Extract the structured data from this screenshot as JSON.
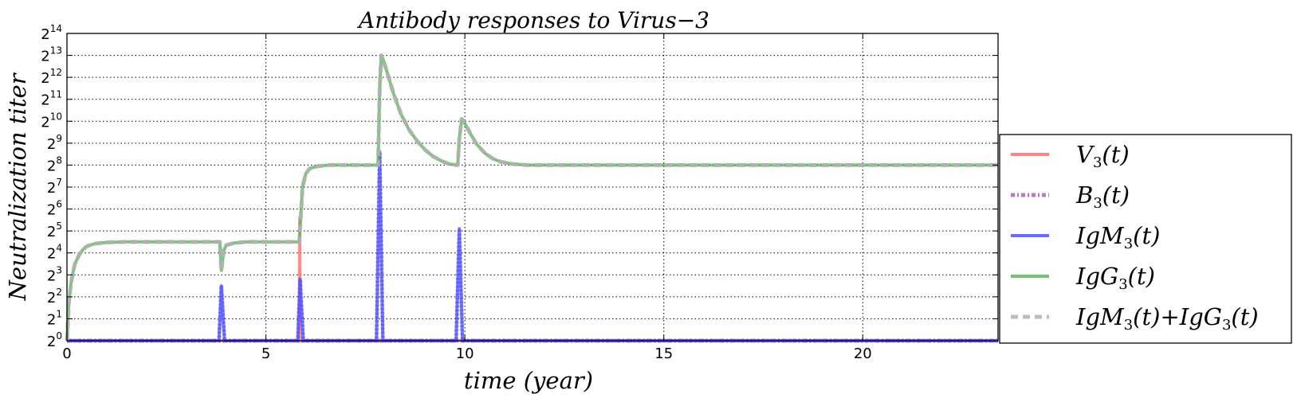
{
  "chart_data": {
    "type": "line",
    "title": "Antibody responses to Virus−3",
    "xlabel": "time (year)",
    "ylabel": "Neutralization  titer",
    "xlim": [
      0,
      23.4
    ],
    "ylim_log2": [
      0,
      14
    ],
    "y_scale": "log2",
    "grid": true,
    "legend_position": "right",
    "x_ticks": [
      {
        "value": 0,
        "label": "0"
      },
      {
        "value": 5,
        "label": "5"
      },
      {
        "value": 10,
        "label": "10"
      },
      {
        "value": 15,
        "label": "15"
      },
      {
        "value": 20,
        "label": "20"
      }
    ],
    "y_ticks": [
      {
        "exp": 0,
        "base": "2",
        "sup": "0"
      },
      {
        "exp": 1,
        "base": "2",
        "sup": "1"
      },
      {
        "exp": 2,
        "base": "2",
        "sup": "2"
      },
      {
        "exp": 3,
        "base": "2",
        "sup": "3"
      },
      {
        "exp": 4,
        "base": "2",
        "sup": "4"
      },
      {
        "exp": 5,
        "base": "2",
        "sup": "5"
      },
      {
        "exp": 6,
        "base": "2",
        "sup": "6"
      },
      {
        "exp": 7,
        "base": "2",
        "sup": "7"
      },
      {
        "exp": 8,
        "base": "2",
        "sup": "8"
      },
      {
        "exp": 9,
        "base": "2",
        "sup": "9"
      },
      {
        "exp": 10,
        "base": "2",
        "sup": "10"
      },
      {
        "exp": 11,
        "base": "2",
        "sup": "11"
      },
      {
        "exp": 12,
        "base": "2",
        "sup": "12"
      },
      {
        "exp": 13,
        "base": "2",
        "sup": "13"
      },
      {
        "exp": 14,
        "base": "2",
        "sup": "14"
      }
    ],
    "series": [
      {
        "key": "V",
        "name_main": "V",
        "name_sub": "3",
        "name_tail": "(t)",
        "color": "#ff6f6f",
        "style": "solid",
        "points": [
          [
            0,
            0
          ],
          [
            5.84,
            0
          ],
          [
            5.85,
            5.6
          ],
          [
            5.86,
            0
          ],
          [
            23.4,
            0
          ]
        ]
      },
      {
        "key": "B",
        "name_main": "B",
        "name_sub": "3",
        "name_tail": "(t)",
        "color": "#b060c0",
        "style": "dashdot",
        "points": [
          [
            0,
            0
          ],
          [
            23.4,
            0
          ]
        ]
      },
      {
        "key": "IgM",
        "name_main": "IgM",
        "name_sub": "3",
        "name_tail": "(t)",
        "color": "#5050ff",
        "style": "solid",
        "points": [
          [
            0,
            0
          ],
          [
            3.82,
            0
          ],
          [
            3.88,
            2.5
          ],
          [
            3.96,
            0
          ],
          [
            5.8,
            0
          ],
          [
            5.86,
            2.8
          ],
          [
            5.94,
            0
          ],
          [
            7.78,
            0
          ],
          [
            7.86,
            8.6
          ],
          [
            7.94,
            0
          ],
          [
            9.78,
            0
          ],
          [
            9.86,
            5.1
          ],
          [
            9.94,
            0
          ],
          [
            23.4,
            0
          ]
        ]
      },
      {
        "key": "IgG",
        "name_main": "IgG",
        "name_sub": "3",
        "name_tail": "(t)",
        "color": "#5cb85c",
        "style": "solid",
        "points": [
          [
            0,
            0
          ],
          [
            0.05,
            1.8
          ],
          [
            0.1,
            2.6
          ],
          [
            0.15,
            3.1
          ],
          [
            0.2,
            3.5
          ],
          [
            0.3,
            3.9
          ],
          [
            0.4,
            4.15
          ],
          [
            0.5,
            4.3
          ],
          [
            0.7,
            4.42
          ],
          [
            1.0,
            4.48
          ],
          [
            1.5,
            4.5
          ],
          [
            3.84,
            4.5
          ],
          [
            3.88,
            3.2
          ],
          [
            3.94,
            4.1
          ],
          [
            4.0,
            4.35
          ],
          [
            4.2,
            4.45
          ],
          [
            4.5,
            4.5
          ],
          [
            5.84,
            4.5
          ],
          [
            5.86,
            5.2
          ],
          [
            5.92,
            7.0
          ],
          [
            6.0,
            7.6
          ],
          [
            6.1,
            7.85
          ],
          [
            6.3,
            7.95
          ],
          [
            6.6,
            8.0
          ],
          [
            7.82,
            8.0
          ],
          [
            7.86,
            11.5
          ],
          [
            7.9,
            13.0
          ],
          [
            7.95,
            12.8
          ],
          [
            8.05,
            12.2
          ],
          [
            8.2,
            11.3
          ],
          [
            8.4,
            10.3
          ],
          [
            8.6,
            9.6
          ],
          [
            8.8,
            9.1
          ],
          [
            9.0,
            8.7
          ],
          [
            9.2,
            8.4
          ],
          [
            9.4,
            8.2
          ],
          [
            9.6,
            8.05
          ],
          [
            9.82,
            8.0
          ],
          [
            9.86,
            9.2
          ],
          [
            9.92,
            10.1
          ],
          [
            10.0,
            9.9
          ],
          [
            10.15,
            9.4
          ],
          [
            10.3,
            8.95
          ],
          [
            10.5,
            8.55
          ],
          [
            10.7,
            8.3
          ],
          [
            10.9,
            8.15
          ],
          [
            11.2,
            8.05
          ],
          [
            11.6,
            8.0
          ],
          [
            23.4,
            8.0
          ]
        ]
      },
      {
        "key": "Sum",
        "name_main": "IgM",
        "name_sub": "3",
        "name_tail": "(t)",
        "name_main2": "IgG",
        "name_sub2": "3",
        "name_tail2": "(t)",
        "joiner": "+",
        "color": "#b0b0b0",
        "style": "dashed",
        "points_from": "IgG"
      }
    ]
  }
}
